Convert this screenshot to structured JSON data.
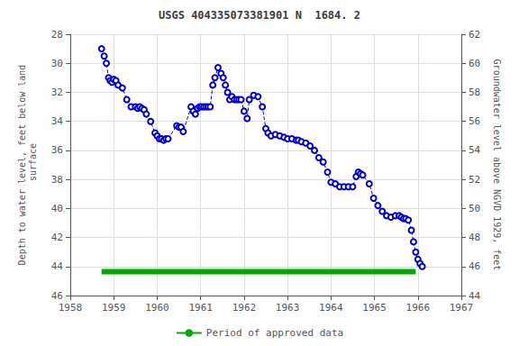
{
  "chart_data": {
    "type": "line",
    "title": "USGS 404335073381901 N  1684. 2",
    "ylabel": "Depth to water level, feet below land\n surface",
    "y2label": "Groundwater level above NGVD 1929, feet",
    "xlim": [
      1958,
      1967
    ],
    "xticks": [
      1958,
      1959,
      1960,
      1961,
      1962,
      1963,
      1964,
      1965,
      1966,
      1967
    ],
    "ylim": [
      46,
      28
    ],
    "yticks": [
      28,
      30,
      32,
      34,
      36,
      38,
      40,
      42,
      44,
      46
    ],
    "y2lim": [
      44,
      62
    ],
    "y2ticks": [
      62,
      60,
      58,
      56,
      54,
      52,
      50,
      48,
      46,
      44
    ],
    "grid": true,
    "legend": "bottom",
    "series": [
      {
        "color": "#0000CC",
        "line_style": "dashed",
        "marker": "circle",
        "x": [
          1958.72,
          1958.78,
          1958.83,
          1958.88,
          1958.92,
          1958.96,
          1959.0,
          1959.05,
          1959.1,
          1959.2,
          1959.3,
          1959.4,
          1959.5,
          1959.55,
          1959.6,
          1959.65,
          1959.7,
          1959.75,
          1959.85,
          1959.95,
          1960.0,
          1960.05,
          1960.1,
          1960.15,
          1960.2,
          1960.25,
          1960.45,
          1960.5,
          1960.55,
          1960.6,
          1960.78,
          1960.83,
          1960.88,
          1960.93,
          1960.98,
          1961.02,
          1961.07,
          1961.12,
          1961.17,
          1961.22,
          1961.28,
          1961.33,
          1961.4,
          1961.47,
          1961.52,
          1961.57,
          1961.62,
          1961.67,
          1961.72,
          1961.78,
          1961.83,
          1961.88,
          1961.93,
          1962.0,
          1962.07,
          1962.12,
          1962.22,
          1962.32,
          1962.42,
          1962.5,
          1962.55,
          1962.62,
          1962.72,
          1962.82,
          1962.92,
          1963.0,
          1963.1,
          1963.2,
          1963.25,
          1963.32,
          1963.42,
          1963.52,
          1963.62,
          1963.72,
          1963.82,
          1963.92,
          1964.0,
          1964.1,
          1964.2,
          1964.3,
          1964.4,
          1964.5,
          1964.58,
          1964.63,
          1964.68,
          1964.73,
          1964.88,
          1964.98,
          1965.08,
          1965.18,
          1965.28,
          1965.38,
          1965.48,
          1965.57,
          1965.62,
          1965.67,
          1965.72,
          1965.78,
          1965.85,
          1965.9,
          1965.95,
          1966.0,
          1966.05,
          1966.1
        ],
        "values": [
          29.0,
          29.5,
          30.0,
          31.0,
          31.2,
          31.3,
          31.1,
          31.2,
          31.5,
          31.7,
          32.5,
          33.0,
          33.0,
          33.1,
          33.0,
          33.1,
          33.2,
          33.5,
          34.0,
          34.8,
          35.0,
          35.2,
          35.2,
          35.3,
          35.2,
          35.2,
          34.3,
          34.4,
          34.4,
          34.7,
          33.0,
          33.3,
          33.5,
          33.1,
          33.0,
          33.0,
          33.0,
          33.0,
          33.0,
          33.0,
          31.5,
          31.0,
          30.3,
          30.7,
          31.0,
          31.5,
          32.0,
          32.5,
          32.3,
          32.5,
          32.5,
          32.5,
          32.5,
          33.3,
          33.8,
          32.5,
          32.2,
          32.3,
          33.0,
          34.5,
          34.8,
          35.0,
          34.9,
          35.0,
          35.1,
          35.2,
          35.2,
          35.3,
          35.3,
          35.4,
          35.5,
          35.7,
          36.0,
          36.5,
          36.8,
          37.5,
          38.2,
          38.3,
          38.5,
          38.5,
          38.5,
          38.5,
          37.8,
          37.5,
          37.6,
          37.7,
          38.3,
          39.3,
          39.8,
          40.2,
          40.5,
          40.6,
          40.5,
          40.5,
          40.6,
          40.7,
          40.7,
          40.8,
          41.5,
          42.3,
          43.0,
          43.5,
          43.8,
          44.0
        ]
      },
      {
        "name": "Period of approved data",
        "color": "#00aa00",
        "line_style": "solid",
        "marker": "none",
        "x": [
          1958.72,
          1965.95
        ],
        "values": [
          44.35,
          44.35
        ]
      }
    ]
  }
}
